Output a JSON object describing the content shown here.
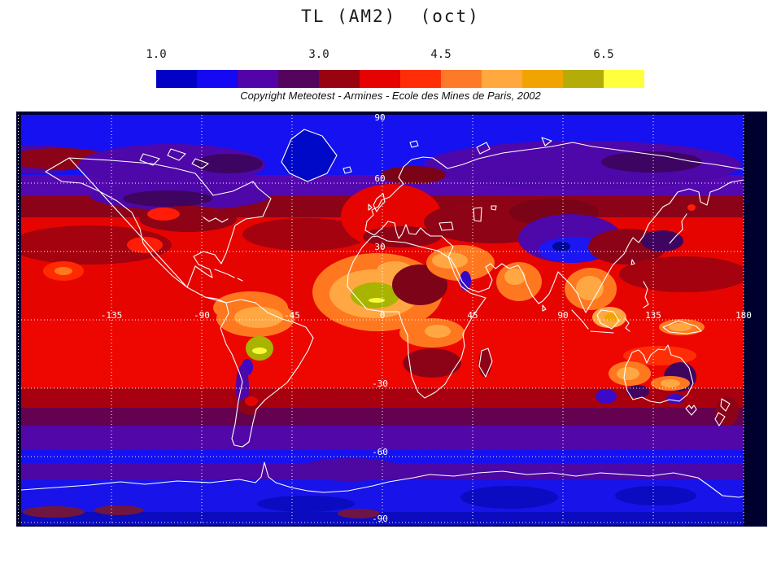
{
  "title": "TL (AM2)  (oct)",
  "copyright": "Copyright Meteotest - Armines - Ecole des Mines de Paris, 2002",
  "colorbar": {
    "min": 1.0,
    "max": 7.0,
    "step": 0.5,
    "ticks": [
      {
        "label": "1.0",
        "value": 1.0
      },
      {
        "label": "3.0",
        "value": 3.0
      },
      {
        "label": "4.5",
        "value": 4.5
      },
      {
        "label": "6.5",
        "value": 6.5
      }
    ],
    "segment_colors": [
      "#0202C6",
      "#1508F2",
      "#5204A8",
      "#55045E",
      "#970310",
      "#E60200",
      "#FF2E06",
      "#FF7A28",
      "#FFA83E",
      "#F0A402",
      "#B4AC08",
      "#FFFF3E"
    ]
  },
  "map": {
    "lon_lines": [
      -180,
      -135,
      -90,
      -45,
      0,
      45,
      90,
      135,
      180
    ],
    "lat_lines": [
      60,
      30,
      0,
      -30,
      -60,
      -90
    ],
    "lon_labels": [
      {
        "text": "-135",
        "lon": -135
      },
      {
        "text": "-90",
        "lon": -90
      },
      {
        "text": "-45",
        "lon": -45
      },
      {
        "text": "0",
        "lon": 0
      },
      {
        "text": "45",
        "lon": 45
      },
      {
        "text": "90",
        "lon": 90
      },
      {
        "text": "135",
        "lon": 135
      },
      {
        "text": "180",
        "lon": 180
      }
    ],
    "lat_labels": [
      {
        "text": "90",
        "lat": 90
      },
      {
        "text": "60",
        "lat": 60
      },
      {
        "text": "30",
        "lat": 30
      },
      {
        "text": "-30",
        "lat": -30
      },
      {
        "text": "-60",
        "lat": -60
      },
      {
        "text": "-90",
        "lat": -90
      }
    ]
  },
  "palette": {
    "page_bg": "#FFFFFF",
    "frame": "#00002E",
    "grid_and_labels": "#FFFFFF",
    "coastline": "#FFFFFF",
    "text": "#1A1A1A"
  },
  "chart_data": {
    "type": "heatmap",
    "title": "TL (AM2)  (oct)",
    "projection": "equirectangular",
    "lon_range": [
      -180,
      180
    ],
    "lat_range": [
      -90,
      90
    ],
    "grid": {
      "lon_step_deg": 45,
      "lat_step_deg": 30,
      "style": "white dotted"
    },
    "colorbar": {
      "min": 1.0,
      "max": 7.0,
      "step": 0.5,
      "tick_values": [
        1.0,
        3.0,
        4.5,
        6.5
      ],
      "colors": [
        "#0202C6",
        "#1508F2",
        "#5204A8",
        "#55045E",
        "#970310",
        "#E60200",
        "#FF2E06",
        "#FF7A28",
        "#FFA83E",
        "#F0A402",
        "#B4AC08",
        "#FFFF3E"
      ]
    },
    "zonal_bands_read_from_map": [
      {
        "lat_range": "90N-60N",
        "approx_value": "1.5-2.0",
        "color": "bright blue"
      },
      {
        "lat_range": "60N-50N",
        "approx_value": "2.0-2.5",
        "color": "purple"
      },
      {
        "lat_range": "50N-42N",
        "approx_value": "3.0-3.5",
        "color": "dark red"
      },
      {
        "lat_range": "42N-30S",
        "approx_value": "3.5-4.0",
        "color": "red"
      },
      {
        "lat_range": "30S-40S",
        "approx_value": "3.0-3.5",
        "color": "dark red"
      },
      {
        "lat_range": "40S-57S",
        "approx_value": "2.0-3.0",
        "color": "purple"
      },
      {
        "lat_range": "57S-62S",
        "approx_value": "1.5-2.0",
        "color": "blue"
      },
      {
        "lat_range": "62S-90S",
        "approx_value": "1.0-2.0",
        "color": "blue / dark blue"
      }
    ],
    "hotspots_read_from_map": [
      {
        "region": "West Africa / Sahel",
        "approx_value": "6.0-7.0"
      },
      {
        "region": "central South America",
        "approx_value": "6.0-7.0"
      },
      {
        "region": "Arabian Peninsula",
        "approx_value": "5.0-5.5"
      },
      {
        "region": "India / Indochina",
        "approx_value": "4.5-5.5"
      },
      {
        "region": "Borneo / Indonesia",
        "approx_value": "5.0-6.0"
      },
      {
        "region": "central Australia",
        "approx_value": "4.5-5.5"
      },
      {
        "region": "Caribbean / northern South America",
        "approx_value": "5.0-5.5"
      }
    ],
    "cold_spots_read_from_map": [
      {
        "region": "Greenland",
        "approx_value": "1.0-1.5"
      },
      {
        "region": "Tibetan Plateau",
        "approx_value": "1.5-2.0"
      },
      {
        "region": "Andes",
        "approx_value": "1.5-2.5"
      },
      {
        "region": "Antarctica",
        "approx_value": "1.0-2.0"
      }
    ]
  }
}
